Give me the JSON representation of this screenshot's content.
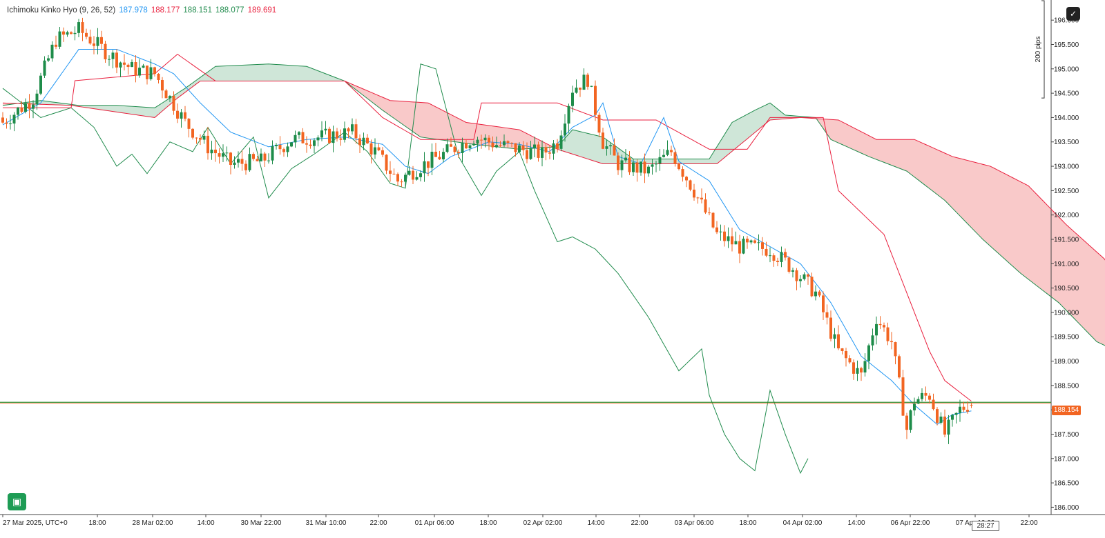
{
  "indicator": {
    "name": "Ichimoku Kinko Hyo (9, 26, 52)",
    "values": [
      {
        "text": "187.978",
        "color": "#2196f3"
      },
      {
        "text": "188.177",
        "color": "#e91e3c"
      },
      {
        "text": "188.151",
        "color": "#1f8b4c"
      },
      {
        "text": "188.077",
        "color": "#1f8b4c"
      },
      {
        "text": "189.691",
        "color": "#e91e3c"
      }
    ]
  },
  "current_price": "188.154",
  "countdown": "28:27",
  "scale_marker": "200 pips",
  "icons": {
    "corner": "chart-settings-icon",
    "badge": "app-logo-icon"
  },
  "colors": {
    "up": "#1e8c4a",
    "down": "#f26522",
    "tenkan": "#2196f3",
    "kijun": "#e91e3c",
    "chikou": "#1f8b4c",
    "cloud_bull": "#cfe6d8",
    "cloud_bear": "#f9c9c9",
    "price_line": "#2e8b2e"
  },
  "chart_data": {
    "type": "candlestick",
    "symbol": "",
    "timezone": "UTC+0",
    "x_ticks": [
      "27 Mar 2025, UTC+0",
      "18:00",
      "28 Mar 02:00",
      "14:00",
      "30 Mar 22:00",
      "31 Mar 10:00",
      "22:00",
      "01 Apr 06:00",
      "18:00",
      "02 Apr 02:00",
      "14:00",
      "22:00",
      "03 Apr 06:00",
      "18:00",
      "04 Apr 02:00",
      "14:00",
      "06 Apr 22:00",
      "07 Apr 10:00",
      "22:00"
    ],
    "y_ticks": [
      "196.000",
      "195.500",
      "195.000",
      "194.500",
      "194.000",
      "193.500",
      "193.000",
      "192.500",
      "192.000",
      "191.500",
      "191.000",
      "190.500",
      "190.000",
      "189.500",
      "189.000",
      "188.500",
      "188.000",
      "187.500",
      "187.000",
      "186.500",
      "186.000"
    ],
    "ylim": [
      185.9,
      196.4
    ],
    "close_keypoints": [
      [
        0,
        193.9
      ],
      [
        8,
        194.4
      ],
      [
        14,
        195.6
      ],
      [
        20,
        195.8
      ],
      [
        28,
        195.3
      ],
      [
        34,
        195.0
      ],
      [
        40,
        194.9
      ],
      [
        44,
        194.4
      ],
      [
        48,
        193.9
      ],
      [
        54,
        193.4
      ],
      [
        60,
        193.05
      ],
      [
        68,
        193.1
      ],
      [
        76,
        193.55
      ],
      [
        84,
        193.6
      ],
      [
        92,
        193.7
      ],
      [
        98,
        193.3
      ],
      [
        104,
        192.7
      ],
      [
        110,
        193.0
      ],
      [
        116,
        193.25
      ],
      [
        124,
        193.6
      ],
      [
        130,
        193.45
      ],
      [
        136,
        193.35
      ],
      [
        142,
        193.25
      ],
      [
        146,
        193.5
      ],
      [
        150,
        194.6
      ],
      [
        154,
        194.8
      ],
      [
        158,
        193.5
      ],
      [
        162,
        193.05
      ],
      [
        170,
        192.9
      ],
      [
        176,
        193.3
      ],
      [
        182,
        192.5
      ],
      [
        188,
        191.6
      ],
      [
        194,
        191.35
      ],
      [
        202,
        191.3
      ],
      [
        208,
        190.9
      ],
      [
        214,
        190.4
      ],
      [
        220,
        189.2
      ],
      [
        226,
        188.7
      ],
      [
        230,
        189.9
      ],
      [
        234,
        189.4
      ],
      [
        238,
        187.6
      ],
      [
        240,
        188.2
      ],
      [
        244,
        188.3
      ],
      [
        248,
        187.5
      ],
      [
        252,
        188.0
      ],
      [
        255,
        188.154
      ]
    ],
    "tenkan_keypoints": [
      [
        0,
        193.85
      ],
      [
        10,
        194.3
      ],
      [
        20,
        195.4
      ],
      [
        30,
        195.4
      ],
      [
        40,
        195.1
      ],
      [
        45,
        194.9
      ],
      [
        52,
        194.3
      ],
      [
        60,
        193.7
      ],
      [
        70,
        193.4
      ],
      [
        80,
        193.55
      ],
      [
        90,
        193.6
      ],
      [
        100,
        193.45
      ],
      [
        106,
        193.0
      ],
      [
        112,
        192.85
      ],
      [
        118,
        193.2
      ],
      [
        128,
        193.5
      ],
      [
        136,
        193.45
      ],
      [
        144,
        193.3
      ],
      [
        150,
        193.8
      ],
      [
        156,
        194.05
      ],
      [
        158,
        194.3
      ],
      [
        162,
        193.2
      ],
      [
        168,
        193.05
      ],
      [
        174,
        194.0
      ],
      [
        178,
        193.1
      ],
      [
        186,
        192.7
      ],
      [
        194,
        191.7
      ],
      [
        202,
        191.35
      ],
      [
        210,
        191.0
      ],
      [
        218,
        190.2
      ],
      [
        226,
        189.1
      ],
      [
        234,
        188.6
      ],
      [
        240,
        188.1
      ],
      [
        246,
        187.7
      ],
      [
        250,
        187.9
      ],
      [
        255,
        187.978
      ]
    ],
    "kijun_keypoints": [
      [
        0,
        194.2
      ],
      [
        18,
        194.2
      ],
      [
        18,
        194.75
      ],
      [
        40,
        194.9
      ],
      [
        46,
        195.3
      ],
      [
        56,
        194.75
      ],
      [
        90,
        194.75
      ],
      [
        100,
        194.0
      ],
      [
        110,
        193.55
      ],
      [
        124,
        193.55
      ],
      [
        126,
        194.3
      ],
      [
        146,
        194.3
      ],
      [
        158,
        193.95
      ],
      [
        172,
        193.95
      ],
      [
        186,
        193.35
      ],
      [
        196,
        193.35
      ],
      [
        202,
        194.0
      ],
      [
        216,
        194.0
      ],
      [
        220,
        192.5
      ],
      [
        232,
        191.6
      ],
      [
        244,
        189.2
      ],
      [
        248,
        188.6
      ],
      [
        255,
        188.177
      ]
    ],
    "chikou_keypoints": [
      [
        0,
        194.6
      ],
      [
        10,
        194.0
      ],
      [
        18,
        194.2
      ],
      [
        24,
        193.8
      ],
      [
        30,
        193.0
      ],
      [
        34,
        193.25
      ],
      [
        38,
        192.85
      ],
      [
        44,
        193.5
      ],
      [
        50,
        193.3
      ],
      [
        54,
        193.8
      ],
      [
        60,
        193.05
      ],
      [
        66,
        193.6
      ],
      [
        70,
        192.35
      ],
      [
        76,
        192.95
      ],
      [
        82,
        193.25
      ],
      [
        90,
        193.7
      ],
      [
        96,
        193.3
      ],
      [
        102,
        192.65
      ],
      [
        106,
        192.55
      ],
      [
        110,
        195.1
      ],
      [
        114,
        195.0
      ],
      [
        120,
        193.2
      ],
      [
        126,
        192.4
      ],
      [
        130,
        192.9
      ],
      [
        136,
        193.3
      ],
      [
        140,
        192.5
      ],
      [
        146,
        191.45
      ],
      [
        150,
        191.55
      ],
      [
        156,
        191.3
      ],
      [
        162,
        190.8
      ],
      [
        170,
        189.9
      ],
      [
        178,
        188.8
      ],
      [
        184,
        189.25
      ],
      [
        186,
        188.3
      ],
      [
        190,
        187.5
      ],
      [
        194,
        187.0
      ],
      [
        198,
        186.75
      ],
      [
        202,
        188.4
      ],
      [
        206,
        187.5
      ],
      [
        210,
        186.7
      ],
      [
        212,
        187.0
      ]
    ],
    "span_a_keypoints": [
      [
        0,
        194.25
      ],
      [
        10,
        194.35
      ],
      [
        20,
        194.25
      ],
      [
        30,
        194.25
      ],
      [
        40,
        194.2
      ],
      [
        48,
        194.6
      ],
      [
        56,
        195.05
      ],
      [
        70,
        195.1
      ],
      [
        80,
        195.05
      ],
      [
        90,
        194.75
      ],
      [
        100,
        194.15
      ],
      [
        110,
        193.6
      ],
      [
        124,
        193.45
      ],
      [
        136,
        193.35
      ],
      [
        146,
        193.4
      ],
      [
        150,
        193.75
      ],
      [
        158,
        193.6
      ],
      [
        166,
        193.15
      ],
      [
        176,
        193.15
      ],
      [
        186,
        193.15
      ],
      [
        192,
        193.9
      ],
      [
        198,
        194.15
      ],
      [
        202,
        194.3
      ],
      [
        206,
        194.05
      ],
      [
        214,
        194.0
      ],
      [
        218,
        193.55
      ],
      [
        228,
        193.2
      ],
      [
        238,
        192.9
      ],
      [
        248,
        192.3
      ],
      [
        258,
        191.5
      ],
      [
        268,
        190.8
      ],
      [
        278,
        190.2
      ],
      [
        288,
        189.4
      ],
      [
        296,
        189.1
      ],
      [
        300,
        188.6
      ]
    ],
    "span_b_keypoints": [
      [
        0,
        194.3
      ],
      [
        18,
        194.25
      ],
      [
        40,
        194.0
      ],
      [
        46,
        194.4
      ],
      [
        52,
        194.75
      ],
      [
        90,
        194.75
      ],
      [
        102,
        194.35
      ],
      [
        112,
        194.3
      ],
      [
        122,
        193.9
      ],
      [
        136,
        193.75
      ],
      [
        146,
        193.35
      ],
      [
        158,
        193.05
      ],
      [
        172,
        193.05
      ],
      [
        188,
        193.05
      ],
      [
        202,
        193.95
      ],
      [
        210,
        194.0
      ],
      [
        220,
        193.95
      ],
      [
        230,
        193.55
      ],
      [
        240,
        193.55
      ],
      [
        250,
        193.2
      ],
      [
        260,
        193.0
      ],
      [
        270,
        192.6
      ],
      [
        280,
        191.8
      ],
      [
        290,
        191.1
      ],
      [
        300,
        189.95
      ]
    ],
    "cloud_end_index": 300
  }
}
